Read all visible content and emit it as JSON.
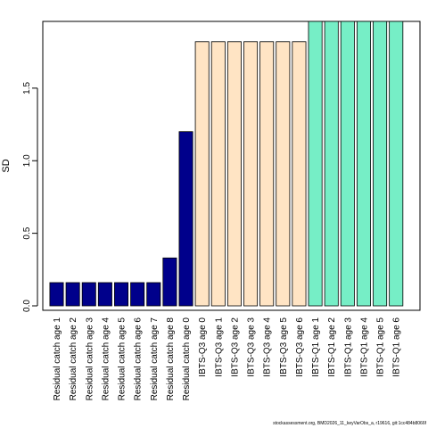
{
  "chart_data": {
    "type": "bar",
    "ylabel": "SD",
    "xlabel": "",
    "ylim": [
      0,
      1.96
    ],
    "yticks": [
      "0.0",
      "0.5",
      "1.0",
      "1.5"
    ],
    "yticks_values": [
      0,
      0.5,
      1.0,
      1.5
    ],
    "grid": false,
    "categories": [
      "Residual catch age 1",
      "Residual catch age 2",
      "Residual catch age 3",
      "Residual catch age 4",
      "Residual catch age 5",
      "Residual catch age 6",
      "Residual catch age 7",
      "Residual catch age 8",
      "Residual catch age 0",
      "IBTS-Q3 age 0",
      "IBTS-Q3 age 1",
      "IBTS-Q3 age 2",
      "IBTS-Q3 age 3",
      "IBTS-Q3 age 4",
      "IBTS-Q3 age 5",
      "IBTS-Q3 age 6",
      "IBTS-Q1 age 1",
      "IBTS-Q1 age 2",
      "IBTS-Q1 age 3",
      "IBTS-Q1 age 4",
      "IBTS-Q1 age 5",
      "IBTS-Q1 age 6"
    ],
    "values": [
      0.16,
      0.16,
      0.16,
      0.16,
      0.16,
      0.16,
      0.16,
      0.33,
      1.2,
      1.82,
      1.82,
      1.82,
      1.82,
      1.82,
      1.82,
      1.82,
      1.96,
      1.96,
      1.96,
      1.96,
      1.96,
      1.96
    ],
    "colors": [
      "#00008b",
      "#00008b",
      "#00008b",
      "#00008b",
      "#00008b",
      "#00008b",
      "#00008b",
      "#00008b",
      "#00008b",
      "#ffe4c4",
      "#ffe4c4",
      "#ffe4c4",
      "#ffe4c4",
      "#ffe4c4",
      "#ffe4c4",
      "#ffe4c4",
      "#76eec6",
      "#76eec6",
      "#76eec6",
      "#76eec6",
      "#76eec6",
      "#76eec6"
    ]
  },
  "footer": "stockassessment.org, BMD2026_11_keyVarObs_a, r19616, git:1cc484b8066f"
}
